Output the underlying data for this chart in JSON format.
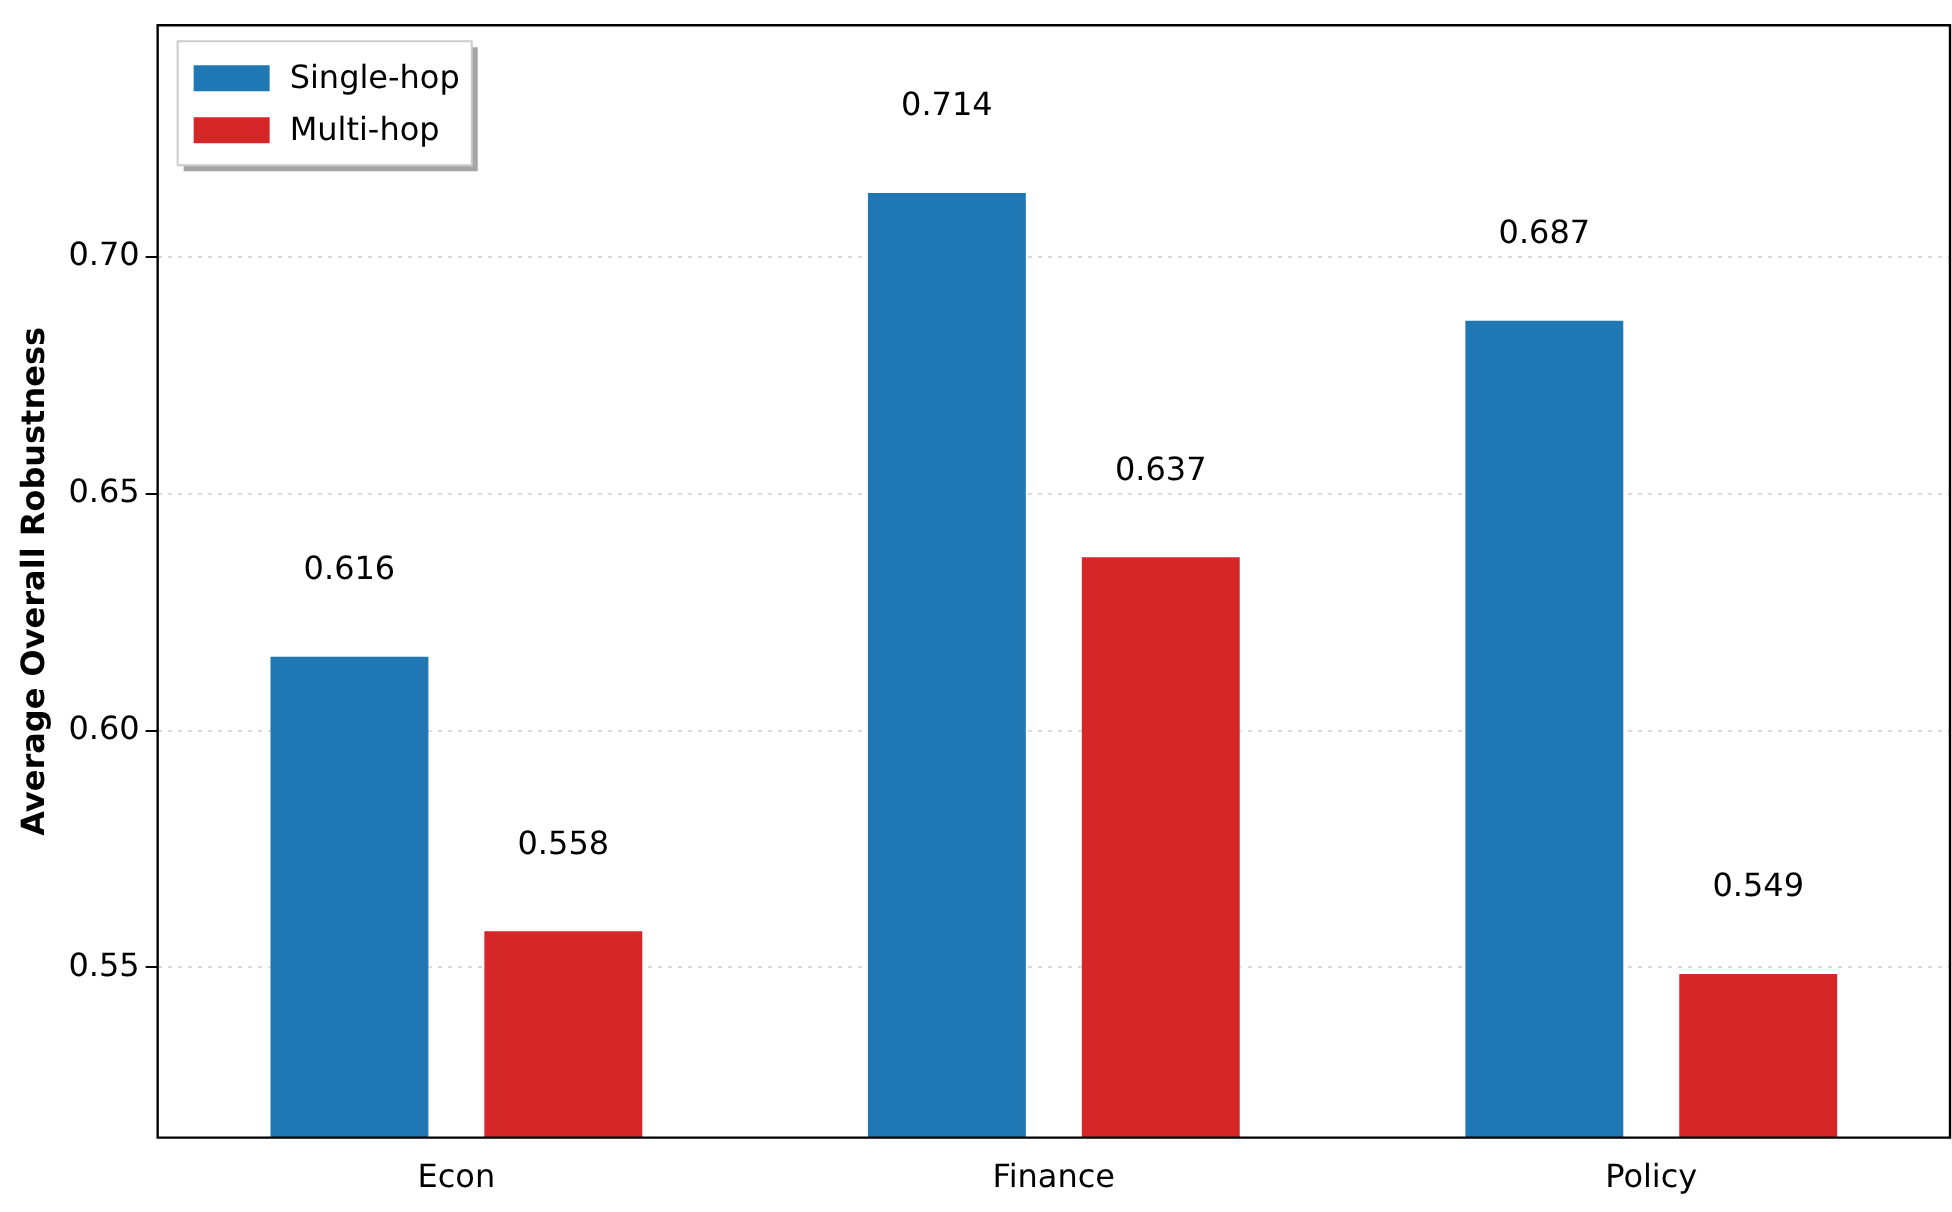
{
  "chart_data": {
    "type": "bar",
    "ylabel": "Average Overall Robustness",
    "categories": [
      "Econ",
      "Finance",
      "Policy"
    ],
    "series": [
      {
        "name": "Single-hop",
        "color": "#1f77b4",
        "values": [
          0.616,
          0.714,
          0.687
        ]
      },
      {
        "name": "Multi-hop",
        "color": "#d62728",
        "values": [
          0.558,
          0.637,
          0.549
        ]
      }
    ],
    "ylim": [
      0.514,
      0.749
    ],
    "yticks": [
      {
        "value": 0.55,
        "label": "0.55"
      },
      {
        "value": 0.6,
        "label": "0.60"
      },
      {
        "value": 0.65,
        "label": "0.65"
      },
      {
        "value": 0.7,
        "label": "0.70"
      }
    ],
    "grid": "y",
    "legend": "top left",
    "data_labels": true
  }
}
